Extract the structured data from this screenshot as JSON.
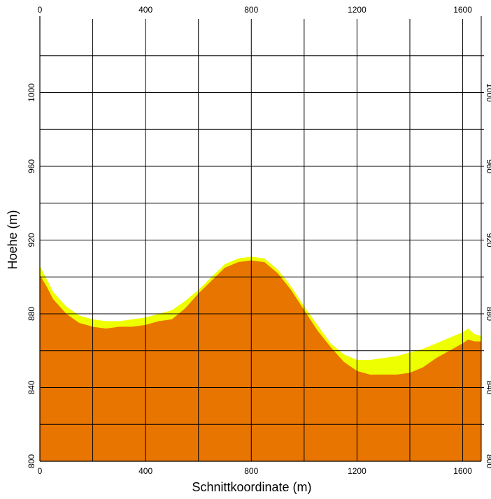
{
  "chart_data": {
    "type": "area",
    "xlabel": "Schnittkoordinate (m)",
    "ylabel": "Hoehe (m)",
    "xlim": [
      0,
      1670
    ],
    "ylim": [
      800,
      1040
    ],
    "x_ticks": [
      0,
      400,
      800,
      1200,
      1600
    ],
    "y_ticks": [
      800,
      840,
      880,
      920,
      960,
      1000
    ],
    "x_grid": [
      200,
      400,
      600,
      800,
      1000,
      1200,
      1400,
      1600
    ],
    "y_grid": [
      820,
      840,
      860,
      880,
      900,
      920,
      940,
      960,
      980,
      1000,
      1020
    ],
    "grid": true,
    "colors": {
      "ground": "#E87500",
      "layer": "#EEFF00",
      "grid": "#000000"
    },
    "series": [
      {
        "x": [
          0,
          25,
          50,
          100,
          150,
          200,
          250,
          300,
          350,
          400,
          450,
          500,
          550,
          600,
          650,
          700,
          750,
          800,
          850,
          900,
          950,
          1000,
          1050,
          1100,
          1150,
          1200,
          1250,
          1300,
          1350,
          1400,
          1450,
          1500,
          1550,
          1600,
          1620,
          1645,
          1670
        ],
        "values": [
          906,
          899,
          892,
          884,
          879,
          877,
          876,
          876,
          877,
          878,
          880,
          882,
          887,
          893,
          900,
          907,
          910,
          911,
          910,
          904,
          895,
          884,
          874,
          864,
          858,
          855,
          855,
          856,
          857,
          859,
          861,
          864,
          867,
          870,
          872,
          869,
          868
        ]
      },
      {
        "x": [
          0,
          25,
          50,
          100,
          150,
          200,
          250,
          300,
          350,
          400,
          450,
          500,
          550,
          600,
          650,
          700,
          750,
          800,
          850,
          900,
          950,
          1000,
          1050,
          1100,
          1150,
          1200,
          1250,
          1300,
          1350,
          1400,
          1450,
          1500,
          1550,
          1600,
          1620,
          1645,
          1670
        ],
        "values": [
          901,
          895,
          888,
          880,
          875,
          873,
          872,
          873,
          873,
          874,
          876,
          877,
          883,
          891,
          898,
          905,
          908,
          909,
          908,
          902,
          893,
          882,
          871,
          862,
          854,
          849,
          847,
          847,
          847,
          848,
          851,
          856,
          860,
          864,
          866,
          865,
          865
        ]
      }
    ]
  }
}
